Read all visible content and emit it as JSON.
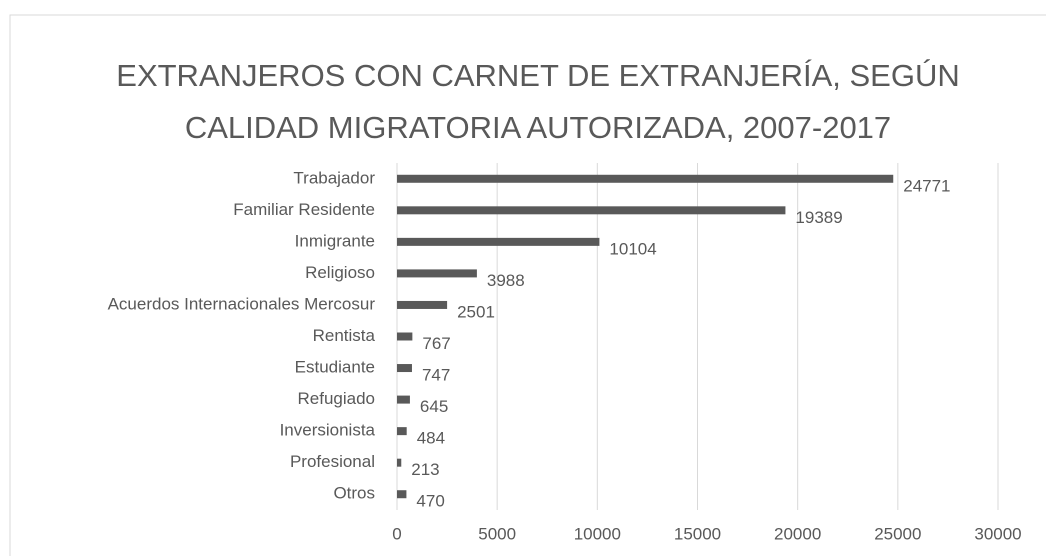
{
  "chart_data": {
    "type": "barh",
    "title": [
      "EXTRANJEROS CON CARNET DE EXTRANJERÍA, SEGÚN",
      "CALIDAD MIGRATORIA AUTORIZADA, 2007-2017"
    ],
    "categories": [
      "Trabajador",
      "Familiar Residente",
      "Inmigrante",
      "Religioso",
      "Acuerdos Internacionales Mercosur",
      "Rentista",
      "Estudiante",
      "Refugiado",
      "Inversionista",
      "Profesional",
      "Otros"
    ],
    "values": [
      24771,
      19389,
      10104,
      3988,
      2501,
      767,
      747,
      645,
      484,
      213,
      470
    ],
    "color": "#595959",
    "xlim": [
      0,
      30000
    ],
    "xticks": [
      0,
      5000,
      10000,
      15000,
      20000,
      25000,
      30000
    ],
    "grid": true,
    "data_labels": true
  }
}
